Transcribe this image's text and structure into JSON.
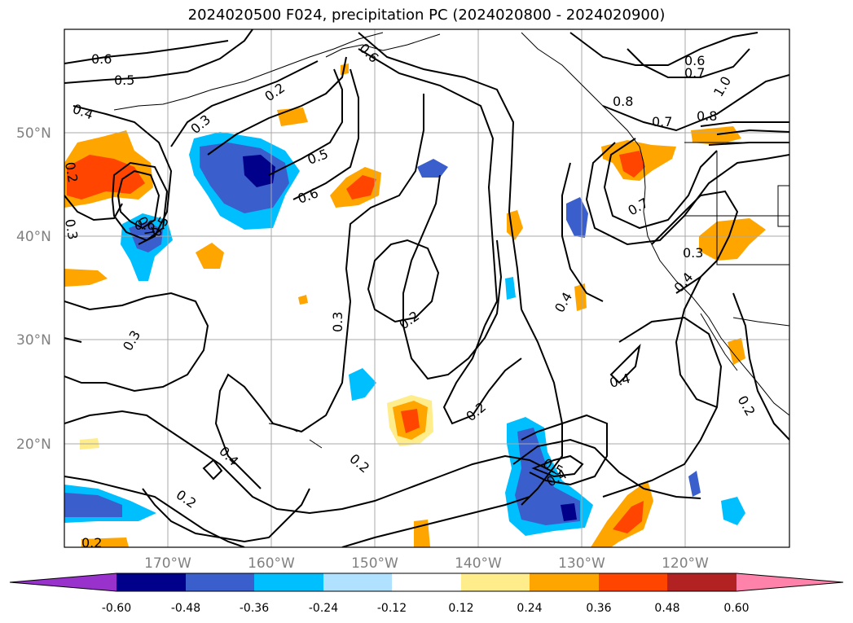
{
  "title": "2024020500 F024, precipitation PC (2024020800 - 2024020900)",
  "map": {
    "lon_range": [
      -180,
      -110
    ],
    "lat_range": [
      10,
      60
    ],
    "lat_labels": [
      "50°N",
      "40°N",
      "30°N",
      "20°N"
    ],
    "lon_labels": [
      "170°W",
      "160°W",
      "150°W",
      "140°W",
      "130°W",
      "120°W"
    ],
    "grid": true,
    "contour_labels": [
      "0.6",
      "0.5",
      "0.4",
      "0.3",
      "0.2",
      "0.6",
      "0.5",
      "0.6",
      "0.3",
      "0.2",
      "0.7",
      "0.6",
      "0.5",
      "0.7",
      "0.8",
      "0.6",
      "1.0",
      "0.8",
      "0.7",
      "0.7",
      "0.3",
      "0.4",
      "0.4",
      "0.3",
      "0.2",
      "0.3",
      "0.4",
      "0.2",
      "0.4",
      "0.2",
      "0.2",
      "0.5",
      "0.4",
      "0.2",
      "0.2"
    ]
  },
  "colorbar": {
    "levels": [
      "-0.60",
      "-0.48",
      "-0.36",
      "-0.24",
      "-0.12",
      "0.12",
      "0.24",
      "0.36",
      "0.48",
      "0.60"
    ],
    "colors": [
      "#9932cc",
      "#00008b",
      "#3a5fcd",
      "#00bfff",
      "#b0e2ff",
      "#ffffff",
      "#ffec8b",
      "#ffa500",
      "#ff4500",
      "#b22222",
      "#ff82ab"
    ]
  }
}
